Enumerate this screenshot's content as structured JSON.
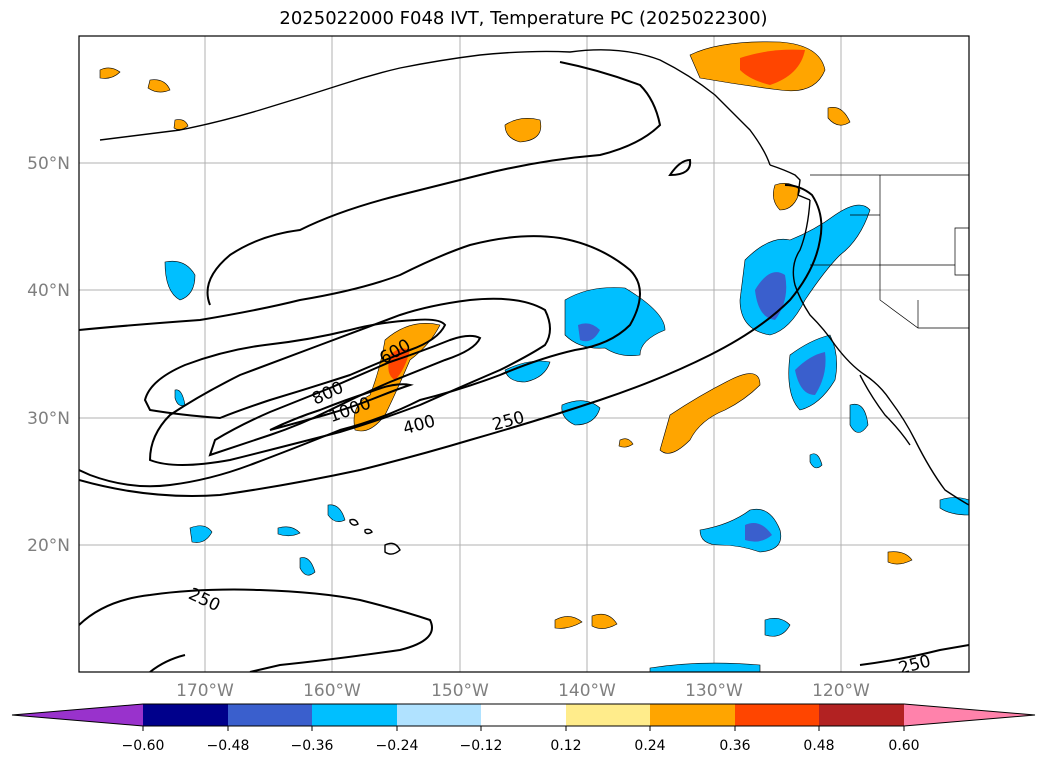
{
  "title": "2025022000 F048 IVT, Temperature PC (2025022300)",
  "lat_labels": [
    "50°N",
    "40°N",
    "30°N",
    "20°N"
  ],
  "lon_labels": [
    "170°W",
    "160°W",
    "150°W",
    "140°W",
    "130°W",
    "120°W"
  ],
  "ivt_contour_labels": [
    "600",
    "800",
    "1000",
    "400",
    "250",
    "250",
    "250"
  ],
  "colorbar": {
    "ticks": [
      "−0.60",
      "−0.48",
      "−0.36",
      "−0.24",
      "−0.12",
      "0.12",
      "0.24",
      "0.36",
      "0.48",
      "0.60"
    ],
    "colors": [
      "#9932cc",
      "#00008b",
      "#3a5fcd",
      "#00bfff",
      "#b0e2ff",
      "#ffffff",
      "#ffec8b",
      "#ffa500",
      "#ff4500",
      "#b22222",
      "#ff82ab"
    ]
  }
}
